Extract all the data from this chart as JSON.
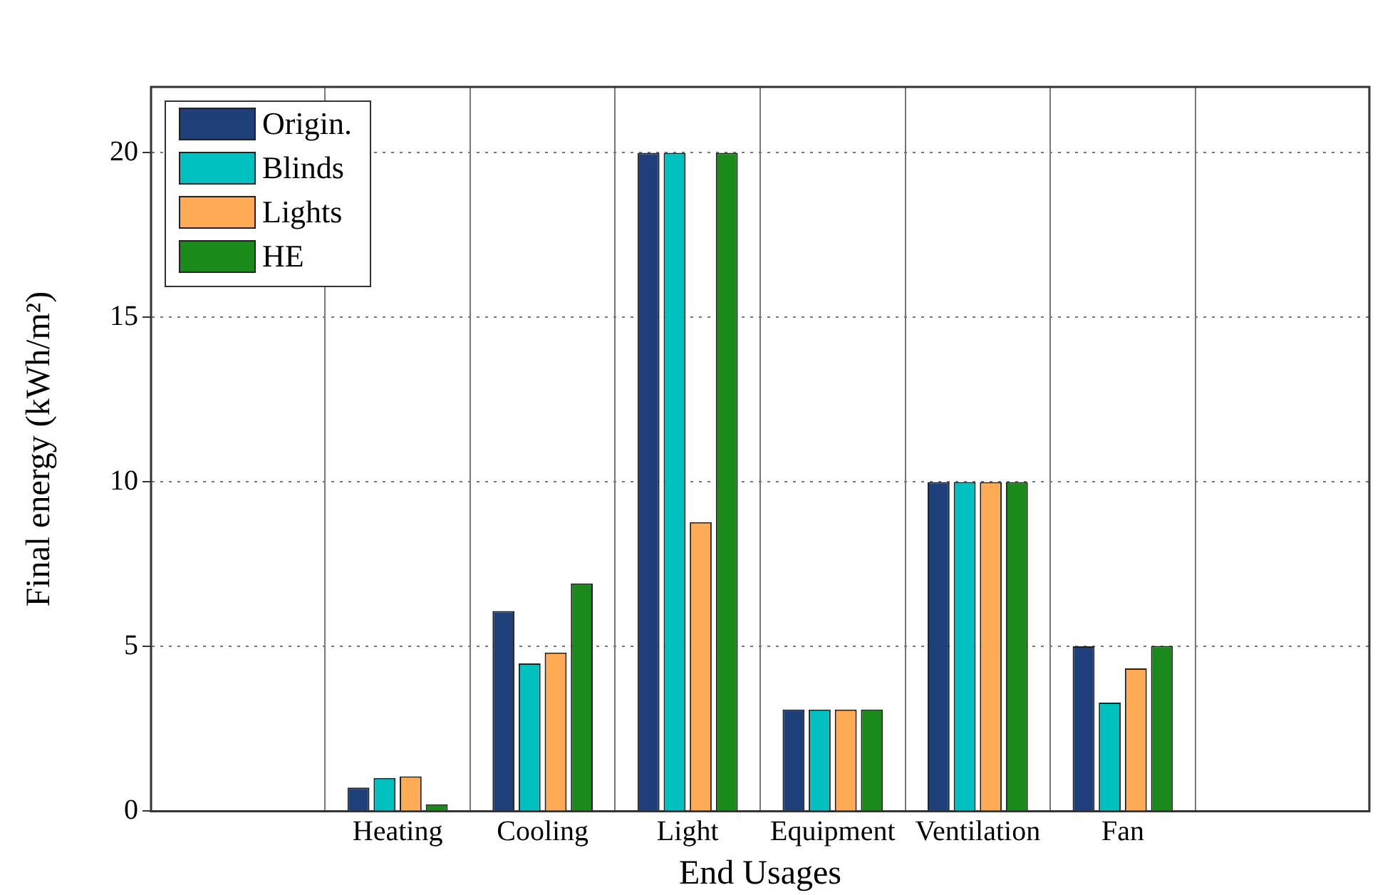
{
  "chart_data": {
    "type": "bar",
    "xlabel": "End Usages",
    "ylabel": "Final energy (kWh/m²)",
    "categories": [
      "Heating",
      "Cooling",
      "Light",
      "Equipment",
      "Ventilation",
      "Fan"
    ],
    "series": [
      {
        "name": "Origin.",
        "color": "#1f3f7a",
        "values": [
          0.72,
          6.08,
          20,
          3.09,
          10,
          5.01
        ]
      },
      {
        "name": "Blinds",
        "color": "#00c0c0",
        "values": [
          1.01,
          4.49,
          20,
          3.09,
          10,
          3.3
        ]
      },
      {
        "name": "Lights",
        "color": "#ffaa55",
        "values": [
          1.06,
          4.82,
          8.78,
          3.09,
          10,
          4.34
        ]
      },
      {
        "name": "HE",
        "color": "#1a8a1a",
        "values": [
          0.21,
          6.92,
          20,
          3.09,
          10,
          5.02
        ]
      }
    ],
    "ylim": [
      0,
      22
    ],
    "yticks": [
      0,
      5,
      10,
      15,
      20
    ],
    "grid": true,
    "legend": "top left"
  }
}
